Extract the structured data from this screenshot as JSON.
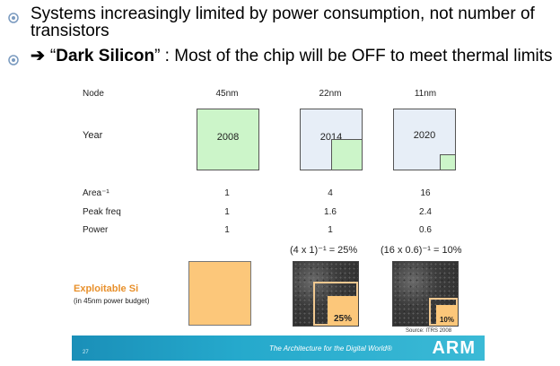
{
  "bullets": [
    {
      "text": "Systems increasingly limited by power consumption, not number of transistors"
    },
    {
      "arrow": "➔",
      "pre": "“",
      "bold": "Dark Silicon",
      "post": "” : Most of the chip will be OFF to meet thermal limits"
    }
  ],
  "table": {
    "header_label": "Node",
    "nodes": [
      "45nm",
      "22nm",
      "11nm"
    ],
    "year_label": "Year",
    "years": [
      "2008",
      "2014",
      "2020"
    ],
    "rows": [
      {
        "label": "Area⁻¹",
        "values": [
          "1",
          "4",
          "16"
        ]
      },
      {
        "label": "Peak freq",
        "values": [
          "1",
          "1.6",
          "2.4"
        ]
      },
      {
        "label": "Power",
        "values": [
          "1",
          "1",
          "0.6"
        ]
      }
    ],
    "formulas": [
      "(4 x 1)⁻¹ = 25%",
      "(16 x 0.6)⁻¹ = 10%"
    ],
    "exploitable_title": "Exploitable Si",
    "exploitable_sub": "(in 45nm power budget)",
    "percentages": [
      "25%",
      "10%"
    ]
  },
  "source": "Source: ITRS 2008",
  "footer": {
    "slide_number": "27",
    "tagline": "The Architecture for the Digital World®",
    "logo": "ARM"
  },
  "colors": {
    "green_box": "#ccf5c9",
    "blue_box": "#e7eef7",
    "orange": "#fcc77a",
    "footer_blue": "#25a9cc",
    "exploitable_text": "#e8902b"
  }
}
